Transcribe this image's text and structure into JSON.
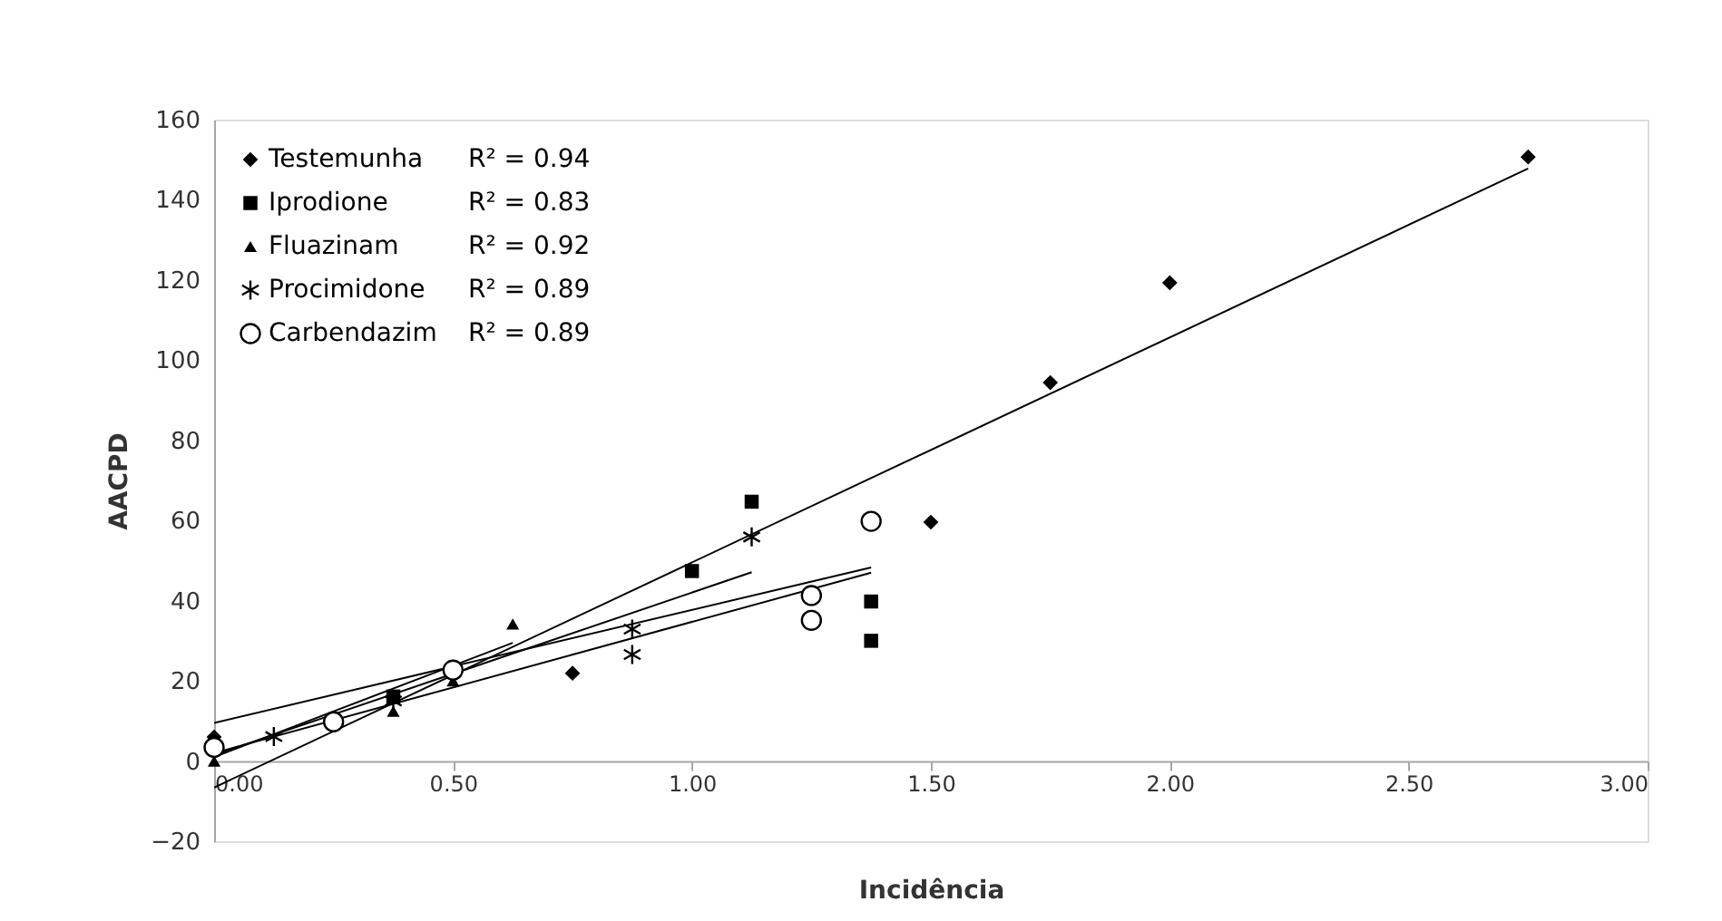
{
  "chart_data": {
    "type": "scatter",
    "xlabel": "Incidência",
    "ylabel": "AACPD",
    "xlim": [
      0,
      3
    ],
    "ylim": [
      -20,
      160
    ],
    "xticks": [
      {
        "value": 0,
        "label": "0.00"
      },
      {
        "value": 0.5,
        "label": "0.50"
      },
      {
        "value": 1,
        "label": "1.00"
      },
      {
        "value": 1.5,
        "label": "1.50"
      },
      {
        "value": 2,
        "label": "2.00"
      },
      {
        "value": 2.5,
        "label": "2.50"
      },
      {
        "value": 3,
        "label": "3.00"
      }
    ],
    "yticks": [
      -20,
      0,
      20,
      40,
      60,
      80,
      100,
      120,
      140,
      160
    ],
    "grid": false,
    "legend": "top left",
    "annotations": [
      "R² = 0.94",
      "R² = 0.83",
      "R² = 0.92",
      "R² = 0.89",
      "R² = 0.89"
    ],
    "series": [
      {
        "name": "Testemunha",
        "type": "scatter",
        "marker": "diamond",
        "color": "#000000",
        "x": [
          0,
          0.75,
          1.5,
          1.75,
          2,
          2.75
        ],
        "values": [
          6,
          21.9,
          59.6,
          94.4,
          119.3,
          150.7
        ]
      },
      {
        "name": "Iprodione",
        "type": "scatter",
        "marker": "square",
        "color": "#000000",
        "x": [
          0.375,
          1,
          1.125,
          1.375,
          1.375
        ],
        "values": [
          16.1,
          47.4,
          64.7,
          39.8,
          30
        ]
      },
      {
        "name": "Fluazinam",
        "type": "scatter",
        "marker": "triangle",
        "color": "#000000",
        "x": [
          0,
          0.375,
          0.5,
          0.625
        ],
        "values": [
          0,
          12.4,
          20,
          34.2
        ]
      },
      {
        "name": "Procimidone",
        "type": "scatter",
        "marker": "cross",
        "color": "#000000",
        "x": [
          0.125,
          0.375,
          0.875,
          0.875,
          1.125
        ],
        "values": [
          6.1,
          15,
          32.9,
          26.6,
          55.9
        ]
      },
      {
        "name": "Carbendazim",
        "type": "scatter",
        "marker": "circle",
        "color": "#000000",
        "x": [
          0,
          0.25,
          0.5,
          1.25,
          1.25,
          1.375
        ],
        "values": [
          3.4,
          9.8,
          22.7,
          41.3,
          35.1,
          59.8
        ]
      },
      {
        "type": "line",
        "color": "#000000",
        "x": [
          0,
          2.75
        ],
        "values": [
          -6.6,
          147.8
        ]
      },
      {
        "type": "line",
        "color": "#000000",
        "x": [
          0,
          1.375
        ],
        "values": [
          9.5,
          48.3
        ]
      },
      {
        "type": "line",
        "color": "#000000",
        "x": [
          0,
          0.625
        ],
        "values": [
          1,
          29.5
        ]
      },
      {
        "type": "line",
        "color": "#000000",
        "x": [
          0,
          1.125
        ],
        "values": [
          1.5,
          47.1
        ]
      },
      {
        "type": "line",
        "color": "#000000",
        "x": [
          0,
          1.375
        ],
        "values": [
          2,
          47
        ]
      }
    ]
  }
}
